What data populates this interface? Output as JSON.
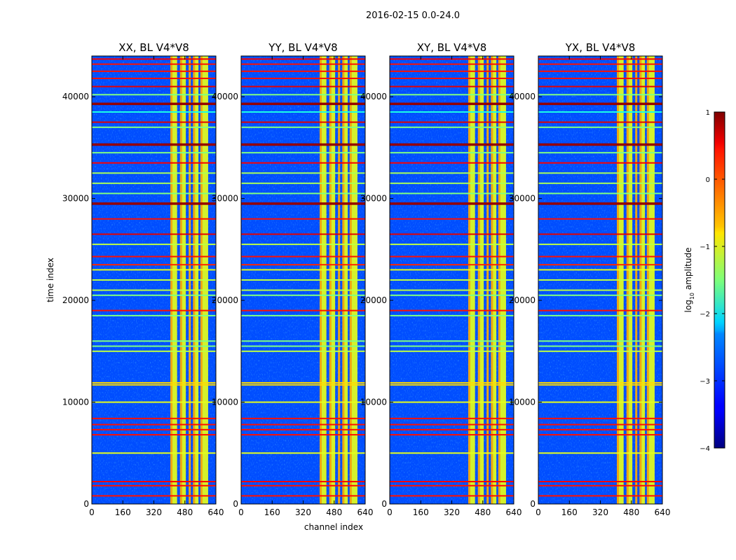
{
  "figure": {
    "suptitle": "2016-02-15 0.0-24.0",
    "xlabel": "channel index",
    "ylabel": "time index"
  },
  "chart_data": {
    "type": "heatmap",
    "x_range": [
      0,
      640
    ],
    "y_range": [
      0,
      44000
    ],
    "x_ticks": [
      0,
      160,
      320,
      480,
      640
    ],
    "y_ticks": [
      0,
      10000,
      20000,
      30000,
      40000
    ],
    "panels": [
      {
        "title": "XX, BL V4*V8",
        "polarization": "XX"
      },
      {
        "title": "YY, BL V4*V8",
        "polarization": "YY"
      },
      {
        "title": "XY, BL V4*V8",
        "polarization": "XY"
      },
      {
        "title": "YX, BL V4*V8",
        "polarization": "YX"
      }
    ],
    "background_log_amp": -3.0,
    "band_channel_ranges": [
      [
        405,
        440
      ],
      [
        455,
        485
      ],
      [
        500,
        510
      ],
      [
        522,
        550
      ],
      [
        560,
        600
      ]
    ],
    "band_log_amp": -1.0,
    "flagged_rows": [
      {
        "t": 800,
        "v": 0.3
      },
      {
        "t": 1800,
        "v": 0.3
      },
      {
        "t": 2200,
        "v": 0.4
      },
      {
        "t": 5000,
        "v": -1.0
      },
      {
        "t": 6800,
        "v": 0.3
      },
      {
        "t": 7300,
        "v": 0.3
      },
      {
        "t": 7800,
        "v": 0.3
      },
      {
        "t": 8400,
        "v": 0.3
      },
      {
        "t": 10000,
        "v": -1.0
      },
      {
        "t": 11700,
        "v": -0.7
      },
      {
        "t": 11900,
        "v": -0.7
      },
      {
        "t": 15000,
        "v": -1.2
      },
      {
        "t": 15500,
        "v": -1.5
      },
      {
        "t": 16000,
        "v": -1.5
      },
      {
        "t": 18500,
        "v": -1.5
      },
      {
        "t": 19000,
        "v": 0.3
      },
      {
        "t": 20500,
        "v": -1.5
      },
      {
        "t": 21000,
        "v": -1.2
      },
      {
        "t": 22000,
        "v": -1.2
      },
      {
        "t": 23000,
        "v": -1.0
      },
      {
        "t": 23500,
        "v": 0.2
      },
      {
        "t": 24300,
        "v": 0.3
      },
      {
        "t": 25500,
        "v": -1.2
      },
      {
        "t": 26500,
        "v": 0.5
      },
      {
        "t": 28000,
        "v": 0.3
      },
      {
        "t": 29500,
        "v": 0.9
      },
      {
        "t": 30500,
        "v": -1.5
      },
      {
        "t": 31500,
        "v": -1.3
      },
      {
        "t": 32500,
        "v": -1.3
      },
      {
        "t": 33500,
        "v": 0.4
      },
      {
        "t": 34500,
        "v": -1.5
      },
      {
        "t": 35300,
        "v": 0.9
      },
      {
        "t": 37000,
        "v": -1.5
      },
      {
        "t": 37500,
        "v": 0.5
      },
      {
        "t": 38500,
        "v": -2.0
      },
      {
        "t": 39300,
        "v": 0.9
      },
      {
        "t": 40200,
        "v": -1.5
      },
      {
        "t": 41000,
        "v": 0.5
      },
      {
        "t": 41800,
        "v": 0.3
      },
      {
        "t": 42500,
        "v": 0.3
      },
      {
        "t": 43200,
        "v": 0.3
      },
      {
        "t": 43700,
        "v": 0.4
      }
    ],
    "colorbar": {
      "label_prefix": "log",
      "label_subscript": "10",
      "label_suffix": " amplitude",
      "range": [
        -4,
        1
      ],
      "ticks": [
        1,
        0,
        -1,
        -2,
        -3,
        -4
      ],
      "tick_labels": [
        "1",
        "0",
        "−1",
        "−2",
        "−3",
        "−4"
      ],
      "colormap": "jet"
    }
  }
}
